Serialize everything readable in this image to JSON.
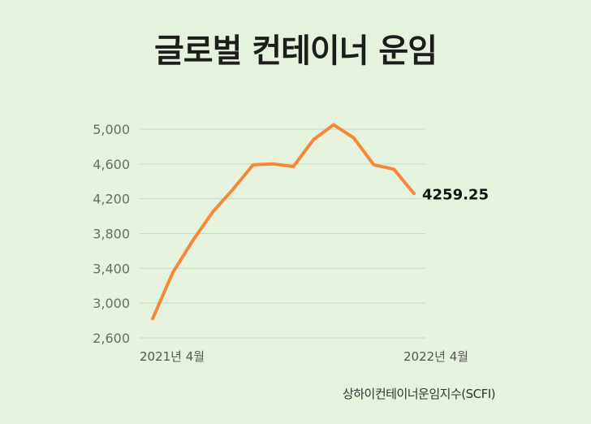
{
  "chart_data": {
    "type": "line",
    "title": "글로벌 컨테이너 운임",
    "source": "상하이컨테이너운임지수(SCFI)",
    "x_start_label": "2021년 4월",
    "x_end_label": "2022년 4월",
    "yticks": [
      2600,
      3000,
      3400,
      3800,
      4200,
      4600,
      5000
    ],
    "ytick_labels": [
      "2,600",
      "3,000",
      "3,400",
      "3,800",
      "4,200",
      "4,600",
      "5,000"
    ],
    "ylim": [
      2600,
      5000
    ],
    "grid": true,
    "series": [
      {
        "color": "#f5893a",
        "values": [
          2820,
          3350,
          3720,
          4050,
          4310,
          4590,
          4600,
          4570,
          4880,
          5050,
          4900,
          4590,
          4540,
          4259.25
        ]
      }
    ],
    "end_label": "4259.25"
  }
}
